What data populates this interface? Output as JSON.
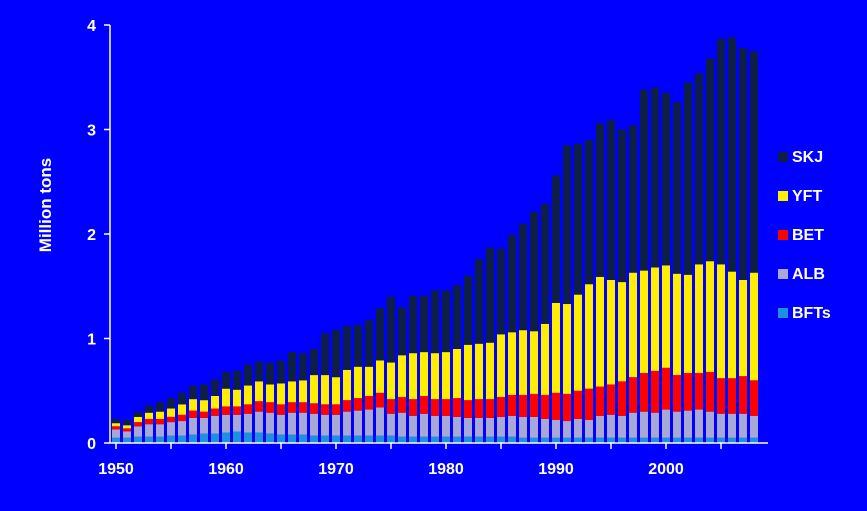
{
  "chart_data": {
    "type": "bar",
    "stacked": true,
    "title": "",
    "xlabel": "",
    "ylabel": "Million tons",
    "ylim": [
      0,
      4
    ],
    "yticks": [
      "0",
      "1",
      "2",
      "3",
      "4"
    ],
    "xticks": [
      "1950",
      "1960",
      "1970",
      "1980",
      "1990",
      "2000"
    ],
    "x": [
      1950,
      1951,
      1952,
      1953,
      1954,
      1955,
      1956,
      1957,
      1958,
      1959,
      1960,
      1961,
      1962,
      1963,
      1964,
      1965,
      1966,
      1967,
      1968,
      1969,
      1970,
      1971,
      1972,
      1973,
      1974,
      1975,
      1976,
      1977,
      1978,
      1979,
      1980,
      1981,
      1982,
      1983,
      1984,
      1985,
      1986,
      1987,
      1988,
      1989,
      1990,
      1991,
      1992,
      1993,
      1994,
      1995,
      1996,
      1997,
      1998,
      1999,
      2000,
      2001,
      2002,
      2003,
      2004,
      2005,
      2006,
      2007,
      2008
    ],
    "legend_position": "right",
    "series": [
      {
        "name": "BFTs",
        "color": "#1e90e0",
        "values": [
          0.05,
          0.05,
          0.06,
          0.06,
          0.06,
          0.07,
          0.07,
          0.08,
          0.09,
          0.09,
          0.1,
          0.11,
          0.1,
          0.1,
          0.09,
          0.08,
          0.08,
          0.08,
          0.07,
          0.07,
          0.07,
          0.07,
          0.07,
          0.07,
          0.07,
          0.07,
          0.06,
          0.06,
          0.06,
          0.06,
          0.06,
          0.06,
          0.06,
          0.06,
          0.06,
          0.06,
          0.06,
          0.05,
          0.05,
          0.05,
          0.05,
          0.05,
          0.05,
          0.05,
          0.05,
          0.05,
          0.05,
          0.05,
          0.05,
          0.05,
          0.05,
          0.05,
          0.05,
          0.05,
          0.05,
          0.05,
          0.05,
          0.05,
          0.05
        ]
      },
      {
        "name": "ALB",
        "color": "#a8a8d8",
        "values": [
          0.08,
          0.06,
          0.1,
          0.12,
          0.12,
          0.13,
          0.14,
          0.16,
          0.15,
          0.17,
          0.17,
          0.16,
          0.18,
          0.2,
          0.2,
          0.19,
          0.21,
          0.21,
          0.21,
          0.2,
          0.2,
          0.23,
          0.24,
          0.25,
          0.27,
          0.21,
          0.23,
          0.2,
          0.22,
          0.2,
          0.2,
          0.19,
          0.18,
          0.18,
          0.18,
          0.19,
          0.2,
          0.2,
          0.2,
          0.18,
          0.17,
          0.16,
          0.18,
          0.17,
          0.21,
          0.22,
          0.21,
          0.24,
          0.25,
          0.24,
          0.27,
          0.25,
          0.26,
          0.27,
          0.25,
          0.23,
          0.23,
          0.23,
          0.21
        ]
      },
      {
        "name": "BET",
        "color": "#ff0000",
        "values": [
          0.03,
          0.03,
          0.04,
          0.05,
          0.05,
          0.05,
          0.06,
          0.07,
          0.06,
          0.07,
          0.08,
          0.08,
          0.09,
          0.1,
          0.1,
          0.1,
          0.1,
          0.1,
          0.1,
          0.1,
          0.1,
          0.11,
          0.12,
          0.13,
          0.14,
          0.14,
          0.15,
          0.16,
          0.17,
          0.16,
          0.16,
          0.18,
          0.17,
          0.18,
          0.18,
          0.19,
          0.2,
          0.21,
          0.22,
          0.23,
          0.26,
          0.26,
          0.27,
          0.3,
          0.28,
          0.29,
          0.33,
          0.34,
          0.37,
          0.4,
          0.4,
          0.35,
          0.36,
          0.35,
          0.38,
          0.34,
          0.34,
          0.36,
          0.34
        ]
      },
      {
        "name": "YFT",
        "color": "#ffee00",
        "values": [
          0.03,
          0.03,
          0.05,
          0.06,
          0.07,
          0.08,
          0.1,
          0.11,
          0.11,
          0.12,
          0.17,
          0.16,
          0.18,
          0.19,
          0.17,
          0.2,
          0.2,
          0.21,
          0.27,
          0.28,
          0.26,
          0.29,
          0.3,
          0.28,
          0.31,
          0.35,
          0.4,
          0.44,
          0.42,
          0.44,
          0.45,
          0.47,
          0.53,
          0.53,
          0.54,
          0.6,
          0.6,
          0.62,
          0.6,
          0.68,
          0.86,
          0.86,
          0.92,
          1.0,
          1.05,
          1.0,
          0.95,
          1.0,
          0.98,
          0.99,
          0.98,
          0.97,
          0.94,
          1.04,
          1.06,
          1.09,
          1.02,
          0.92,
          1.03
        ]
      },
      {
        "name": "SKJ",
        "color": "#0d1f46",
        "values": [
          0.04,
          0.05,
          0.05,
          0.07,
          0.09,
          0.1,
          0.11,
          0.13,
          0.15,
          0.16,
          0.16,
          0.18,
          0.2,
          0.19,
          0.21,
          0.22,
          0.28,
          0.26,
          0.25,
          0.4,
          0.45,
          0.42,
          0.4,
          0.45,
          0.5,
          0.63,
          0.46,
          0.55,
          0.54,
          0.6,
          0.59,
          0.61,
          0.66,
          0.81,
          0.91,
          0.82,
          0.93,
          1.02,
          1.14,
          1.15,
          1.22,
          1.52,
          1.44,
          1.38,
          1.47,
          1.53,
          1.46,
          1.41,
          1.73,
          1.72,
          1.65,
          1.64,
          1.84,
          1.83,
          1.94,
          2.16,
          2.24,
          2.22,
          2.12
        ]
      }
    ]
  }
}
